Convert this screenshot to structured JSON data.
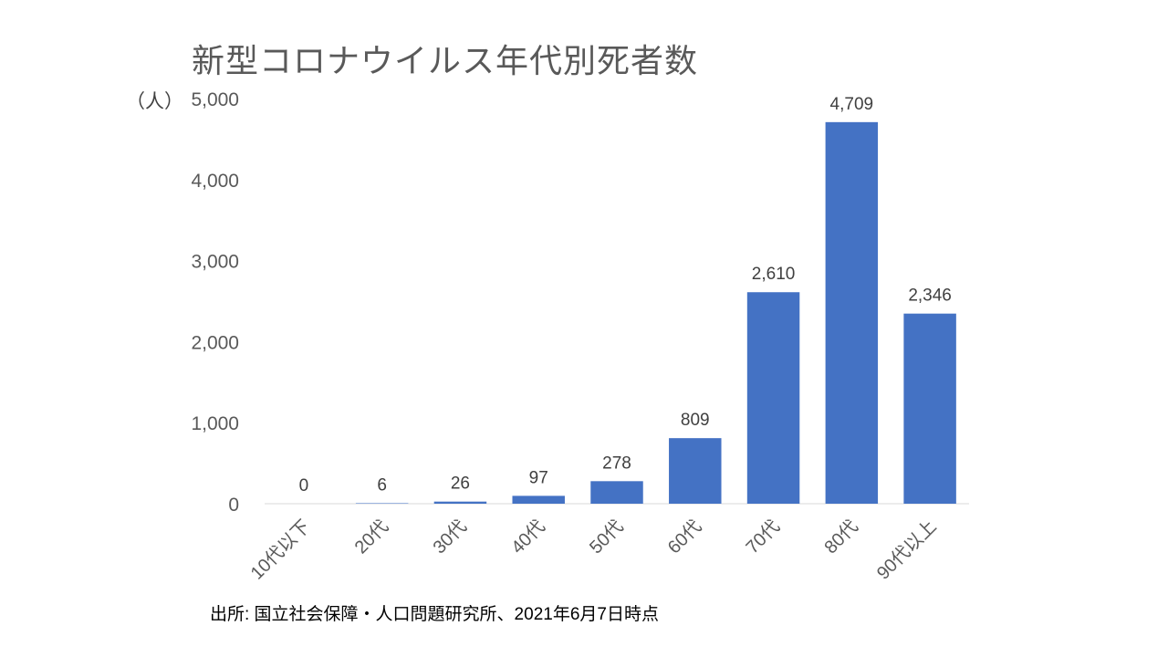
{
  "chart_data": {
    "type": "bar",
    "title": "新型コロナウイルス年代別死者数",
    "ylabel": "（人）",
    "xlabel": "",
    "categories": [
      "10代以下",
      "20代",
      "30代",
      "40代",
      "50代",
      "60代",
      "70代",
      "80代",
      "90代以上"
    ],
    "values": [
      0,
      6,
      26,
      97,
      278,
      809,
      2610,
      4709,
      2346
    ],
    "data_labels": [
      "0",
      "6",
      "26",
      "97",
      "278",
      "809",
      "2,610",
      "4,709",
      "2,346"
    ],
    "ylim": [
      0,
      5000
    ],
    "yticks": [
      0,
      1000,
      2000,
      3000,
      4000,
      5000
    ],
    "ytick_labels": [
      "0",
      "1,000",
      "2,000",
      "3,000",
      "4,000",
      "5,000"
    ],
    "bar_color": "#4472C4",
    "grid": false,
    "legend": "none"
  },
  "source": "出所: 国立社会保障・人口問題研究所、2021年6月7日時点"
}
